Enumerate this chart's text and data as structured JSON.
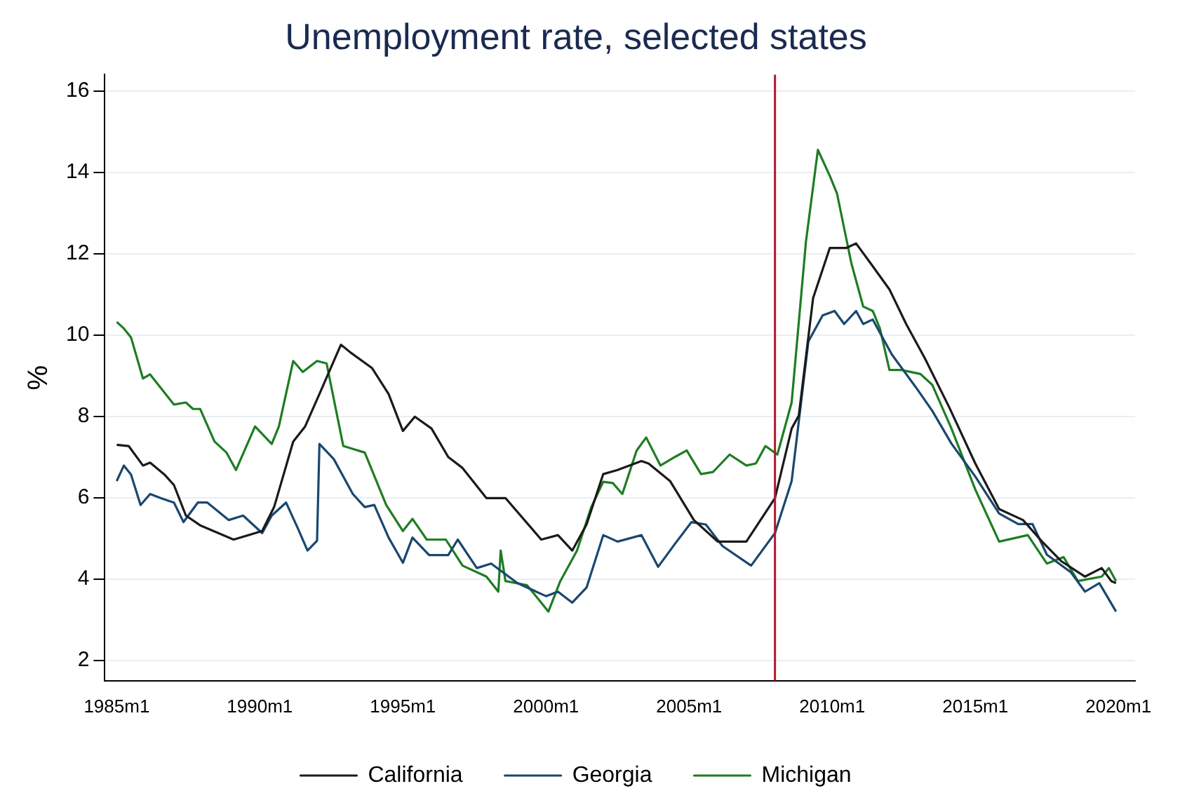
{
  "chart_data": {
    "type": "line",
    "title": "Unemployment rate, selected states",
    "ylabel": "%",
    "xlim": [
      "1984-08",
      "2020-08"
    ],
    "ylim": [
      1.5,
      16.4
    ],
    "xticks": [
      {
        "value": "1985-01",
        "label": "1985m1"
      },
      {
        "value": "1990-01",
        "label": "1990m1"
      },
      {
        "value": "1995-01",
        "label": "1995m1"
      },
      {
        "value": "2000-01",
        "label": "2000m1"
      },
      {
        "value": "2005-01",
        "label": "2005m1"
      },
      {
        "value": "2010-01",
        "label": "2010m1"
      },
      {
        "value": "2015-01",
        "label": "2015m1"
      },
      {
        "value": "2020-01",
        "label": "2020m1"
      }
    ],
    "yticks": [
      2,
      4,
      6,
      8,
      10,
      12,
      14,
      16
    ],
    "grid": "y",
    "legend": "bottom",
    "marker": "none",
    "line_style": "solid",
    "ref_lines": [
      {
        "axis": "x",
        "value": "2008-01",
        "color": "#b2182b"
      }
    ],
    "series": [
      {
        "name": "California",
        "color": "#1a1a1a",
        "x": [
          "1985-01",
          "1985-06",
          "1985-12",
          "1986-03",
          "1986-09",
          "1987-01",
          "1987-06",
          "1987-12",
          "1989-02",
          "1990-02",
          "1990-07",
          "1991-03",
          "1991-08",
          "1992-02",
          "1992-11",
          "1993-03",
          "1993-12",
          "1994-07",
          "1995-01",
          "1995-06",
          "1996-01",
          "1996-08",
          "1997-02",
          "1997-12",
          "1998-08",
          "1999-11",
          "2000-06",
          "2000-12",
          "2001-06",
          "2002-01",
          "2002-07",
          "2003-05",
          "2003-08",
          "2004-05",
          "2005-03",
          "2006-01",
          "2007-01",
          "2008-01",
          "2008-08",
          "2008-11",
          "2009-05",
          "2009-12",
          "2010-07",
          "2010-11",
          "2011-05",
          "2012-01",
          "2012-08",
          "2013-04",
          "2014-02",
          "2015-01",
          "2015-11",
          "2016-09",
          "2017-05",
          "2018-01",
          "2018-11",
          "2019-06",
          "2019-10",
          "2019-12"
        ],
        "values": [
          7.3,
          7.27,
          6.79,
          6.86,
          6.57,
          6.31,
          5.56,
          5.32,
          4.97,
          5.18,
          5.77,
          7.38,
          7.75,
          8.55,
          9.76,
          9.57,
          9.19,
          8.55,
          7.64,
          7.99,
          7.7,
          7.0,
          6.73,
          5.99,
          5.99,
          4.97,
          5.08,
          4.7,
          5.34,
          6.58,
          6.68,
          6.9,
          6.84,
          6.41,
          5.45,
          4.92,
          4.92,
          5.99,
          7.7,
          8.02,
          10.91,
          12.14,
          12.14,
          12.25,
          11.77,
          11.12,
          10.27,
          9.41,
          8.23,
          6.84,
          5.72,
          5.45,
          4.92,
          4.44,
          4.06,
          4.27,
          3.95,
          3.9
        ]
      },
      {
        "name": "Georgia",
        "color": "#1a476f",
        "x": [
          "1985-01",
          "1985-04",
          "1985-07",
          "1985-11",
          "1986-03",
          "1986-08",
          "1987-01",
          "1987-05",
          "1987-11",
          "1988-03",
          "1988-12",
          "1989-06",
          "1990-02",
          "1990-06",
          "1990-12",
          "1991-05",
          "1991-09",
          "1992-01",
          "1992-02",
          "1992-08",
          "1993-04",
          "1993-09",
          "1994-01",
          "1994-07",
          "1995-01",
          "1995-05",
          "1995-12",
          "1996-08",
          "1996-12",
          "1997-08",
          "1998-02",
          "1999-01",
          "2000-01",
          "2000-06",
          "2000-12",
          "2001-06",
          "2002-01",
          "2002-07",
          "2003-05",
          "2003-12",
          "2004-07",
          "2005-02",
          "2005-08",
          "2006-03",
          "2007-03",
          "2008-01",
          "2008-08",
          "2009-03",
          "2009-09",
          "2010-02",
          "2010-06",
          "2010-11",
          "2011-02",
          "2011-06",
          "2012-02",
          "2012-12",
          "2013-07",
          "2014-03",
          "2015-01",
          "2015-11",
          "2016-07",
          "2017-01",
          "2017-07",
          "2018-05",
          "2018-11",
          "2019-05",
          "2019-12"
        ],
        "values": [
          6.41,
          6.79,
          6.57,
          5.82,
          6.09,
          5.98,
          5.88,
          5.4,
          5.88,
          5.88,
          5.45,
          5.56,
          5.13,
          5.56,
          5.88,
          5.24,
          4.7,
          4.94,
          7.32,
          6.95,
          6.09,
          5.77,
          5.82,
          5.02,
          4.4,
          5.02,
          4.59,
          4.59,
          4.97,
          4.27,
          4.38,
          3.9,
          3.58,
          3.69,
          3.42,
          3.79,
          5.08,
          4.92,
          5.08,
          4.3,
          4.86,
          5.4,
          5.34,
          4.81,
          4.33,
          5.13,
          6.41,
          9.84,
          10.48,
          10.59,
          10.27,
          10.59,
          10.27,
          10.38,
          9.52,
          8.72,
          8.13,
          7.33,
          6.52,
          5.61,
          5.35,
          5.35,
          4.6,
          4.17,
          3.69,
          3.9,
          3.2
        ]
      },
      {
        "name": "Michigan",
        "color": "#1e7d22",
        "x": [
          "1985-01",
          "1985-04",
          "1985-07",
          "1985-12",
          "1986-03",
          "1987-01",
          "1987-06",
          "1987-09",
          "1987-12",
          "1988-06",
          "1988-11",
          "1989-03",
          "1989-11",
          "1990-06",
          "1990-09",
          "1991-03",
          "1991-07",
          "1992-01",
          "1992-05",
          "1992-12",
          "1993-09",
          "1994-06",
          "1995-01",
          "1995-05",
          "1995-11",
          "1996-07",
          "1997-02",
          "1997-12",
          "1998-05",
          "1998-06",
          "1998-08",
          "1999-05",
          "1999-11",
          "2000-02",
          "2000-07",
          "2001-02",
          "2001-08",
          "2002-01",
          "2002-05",
          "2002-09",
          "2003-03",
          "2003-07",
          "2004-01",
          "2004-07",
          "2004-12",
          "2005-06",
          "2005-11",
          "2006-06",
          "2007-01",
          "2007-05",
          "2007-09",
          "2008-02",
          "2008-08",
          "2009-02",
          "2009-07",
          "2009-12",
          "2010-03",
          "2010-09",
          "2011-02",
          "2011-06",
          "2011-09",
          "2012-01",
          "2012-06",
          "2013-02",
          "2013-07",
          "2014-03",
          "2015-01",
          "2015-11",
          "2016-11",
          "2017-07",
          "2018-02",
          "2018-08",
          "2019-06",
          "2019-09",
          "2019-12"
        ],
        "values": [
          10.32,
          10.16,
          9.94,
          8.93,
          9.03,
          8.29,
          8.34,
          8.18,
          8.18,
          7.38,
          7.11,
          6.68,
          7.75,
          7.32,
          7.75,
          9.36,
          9.09,
          9.36,
          9.3,
          7.27,
          7.11,
          5.82,
          5.18,
          5.48,
          4.97,
          4.97,
          4.33,
          4.06,
          3.69,
          4.7,
          3.95,
          3.85,
          3.42,
          3.2,
          3.95,
          4.7,
          5.77,
          6.39,
          6.36,
          6.09,
          7.16,
          7.48,
          6.79,
          7.0,
          7.16,
          6.58,
          6.63,
          7.06,
          6.79,
          6.84,
          7.27,
          7.06,
          8.34,
          12.3,
          14.55,
          13.91,
          13.48,
          11.77,
          10.7,
          10.59,
          10.16,
          9.14,
          9.14,
          9.04,
          8.77,
          7.7,
          6.2,
          4.92,
          5.08,
          4.38,
          4.54,
          3.95,
          4.06,
          4.27,
          3.95
        ]
      }
    ]
  }
}
